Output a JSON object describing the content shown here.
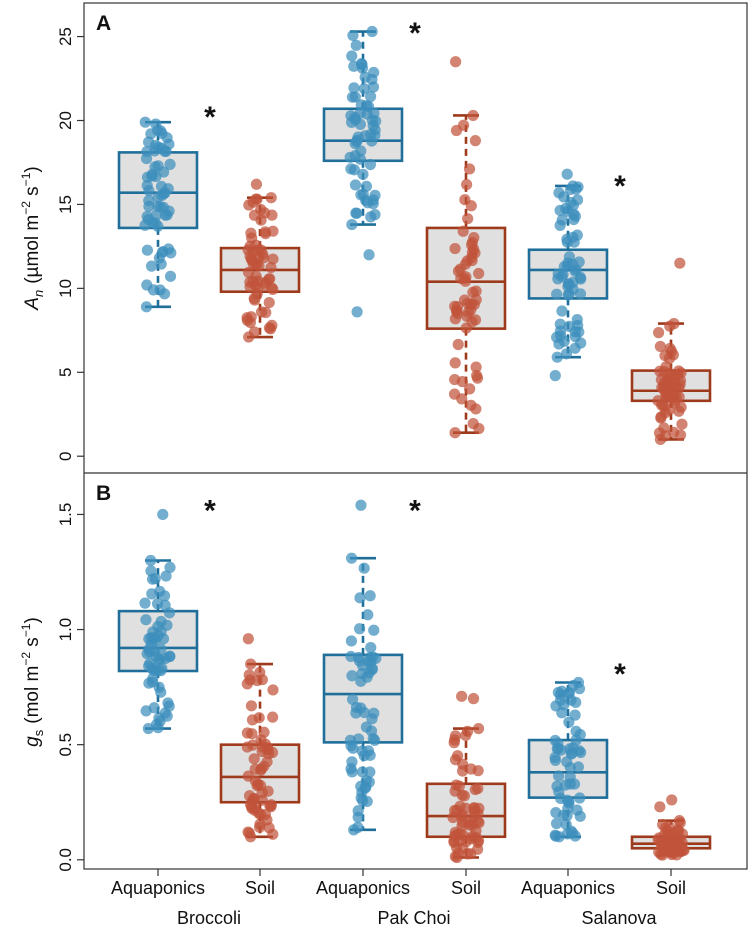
{
  "chart_data": [
    {
      "panel": "A",
      "type": "box",
      "ylabel_main": "A",
      "ylabel_sub": "n",
      "ylabel_unit": "(µmol m",
      "ylabel_sup1": "−2",
      "ylabel_mid": " s",
      "ylabel_sup2": "−1",
      "ylabel_end": ")",
      "ylim": [
        -1,
        27
      ],
      "yticks": [
        0,
        5,
        10,
        15,
        20,
        25
      ],
      "boxes": [
        {
          "category": "Aquaponics",
          "color": "#1f6f9a",
          "point_color": "#3d8fbd",
          "q1": 13.6,
          "median": 15.7,
          "q3": 18.1,
          "whisker_low": 8.9,
          "whisker_high": 19.9,
          "outliers": [],
          "n": 60,
          "seed": 11,
          "star": true,
          "star_y": 20.8
        },
        {
          "category": "Soil",
          "color": "#9e3a1c",
          "point_color": "#c0533a",
          "q1": 9.8,
          "median": 11.1,
          "q3": 12.4,
          "whisker_low": 7.1,
          "whisker_high": 15.4,
          "outliers": [
            16.2
          ],
          "n": 60,
          "seed": 12,
          "star": false,
          "star_y": 0
        },
        {
          "category": "Aquaponics",
          "color": "#1f6f9a",
          "point_color": "#3d8fbd",
          "q1": 17.6,
          "median": 18.8,
          "q3": 20.7,
          "whisker_low": 13.8,
          "whisker_high": 25.3,
          "outliers": [
            12.0,
            8.6
          ],
          "n": 60,
          "seed": 13,
          "star": true,
          "star_y": 25.8
        },
        {
          "category": "Soil",
          "color": "#9e3a1c",
          "point_color": "#c0533a",
          "q1": 7.6,
          "median": 10.4,
          "q3": 13.6,
          "whisker_low": 1.4,
          "whisker_high": 20.3,
          "outliers": [
            23.5
          ],
          "n": 60,
          "seed": 14,
          "star": false,
          "star_y": 0
        },
        {
          "category": "Aquaponics",
          "color": "#1f6f9a",
          "point_color": "#3d8fbd",
          "q1": 9.4,
          "median": 11.1,
          "q3": 12.3,
          "whisker_low": 5.9,
          "whisker_high": 16.1,
          "outliers": [
            16.8,
            4.8
          ],
          "n": 60,
          "seed": 15,
          "star": true,
          "star_y": 16.7
        },
        {
          "category": "Soil",
          "color": "#9e3a1c",
          "point_color": "#c0533a",
          "q1": 3.3,
          "median": 3.9,
          "q3": 5.1,
          "whisker_low": 1.0,
          "whisker_high": 7.9,
          "outliers": [
            11.5
          ],
          "n": 60,
          "seed": 16,
          "star": false,
          "star_y": 0
        }
      ]
    },
    {
      "panel": "B",
      "type": "box",
      "ylabel_main": "g",
      "ylabel_sub": "s",
      "ylabel_unit": "(mol m",
      "ylabel_sup1": "−2",
      "ylabel_mid": " s",
      "ylabel_sup2": "−1",
      "ylabel_end": ")",
      "ylim": [
        -0.04,
        1.68
      ],
      "yticks": [
        0.0,
        0.5,
        1.0,
        1.5
      ],
      "boxes": [
        {
          "category": "Aquaponics",
          "color": "#1f6f9a",
          "point_color": "#3d8fbd",
          "q1": 0.82,
          "median": 0.92,
          "q3": 1.08,
          "whisker_low": 0.57,
          "whisker_high": 1.3,
          "outliers": [
            1.5
          ],
          "n": 60,
          "seed": 21,
          "star": true,
          "star_y": 1.56
        },
        {
          "category": "Soil",
          "color": "#9e3a1c",
          "point_color": "#c0533a",
          "q1": 0.25,
          "median": 0.36,
          "q3": 0.5,
          "whisker_low": 0.1,
          "whisker_high": 0.85,
          "outliers": [
            0.96
          ],
          "n": 60,
          "seed": 22,
          "star": false,
          "star_y": 0
        },
        {
          "category": "Aquaponics",
          "color": "#1f6f9a",
          "point_color": "#3d8fbd",
          "q1": 0.51,
          "median": 0.72,
          "q3": 0.89,
          "whisker_low": 0.13,
          "whisker_high": 1.31,
          "outliers": [
            1.54
          ],
          "n": 60,
          "seed": 23,
          "star": true,
          "star_y": 1.56
        },
        {
          "category": "Soil",
          "color": "#9e3a1c",
          "point_color": "#c0533a",
          "q1": 0.1,
          "median": 0.19,
          "q3": 0.33,
          "whisker_low": 0.01,
          "whisker_high": 0.57,
          "outliers": [
            0.7,
            0.71
          ],
          "n": 60,
          "seed": 24,
          "star": false,
          "star_y": 0
        },
        {
          "category": "Aquaponics",
          "color": "#1f6f9a",
          "point_color": "#3d8fbd",
          "q1": 0.27,
          "median": 0.38,
          "q3": 0.52,
          "whisker_low": 0.1,
          "whisker_high": 0.77,
          "outliers": [],
          "n": 60,
          "seed": 25,
          "star": true,
          "star_y": 0.85
        },
        {
          "category": "Soil",
          "color": "#9e3a1c",
          "point_color": "#c0533a",
          "q1": 0.05,
          "median": 0.07,
          "q3": 0.1,
          "whisker_low": 0.02,
          "whisker_high": 0.17,
          "outliers": [
            0.26,
            0.23
          ],
          "n": 60,
          "seed": 26,
          "star": false,
          "star_y": 0
        }
      ]
    }
  ],
  "x_categories": [
    "Aquaponics",
    "Soil",
    "Aquaponics",
    "Soil",
    "Aquaponics",
    "Soil"
  ],
  "groups": [
    "Broccoli",
    "Pak Choi",
    "Salanova"
  ],
  "panel_letters": [
    "A",
    "B"
  ],
  "significance_marker": "*"
}
